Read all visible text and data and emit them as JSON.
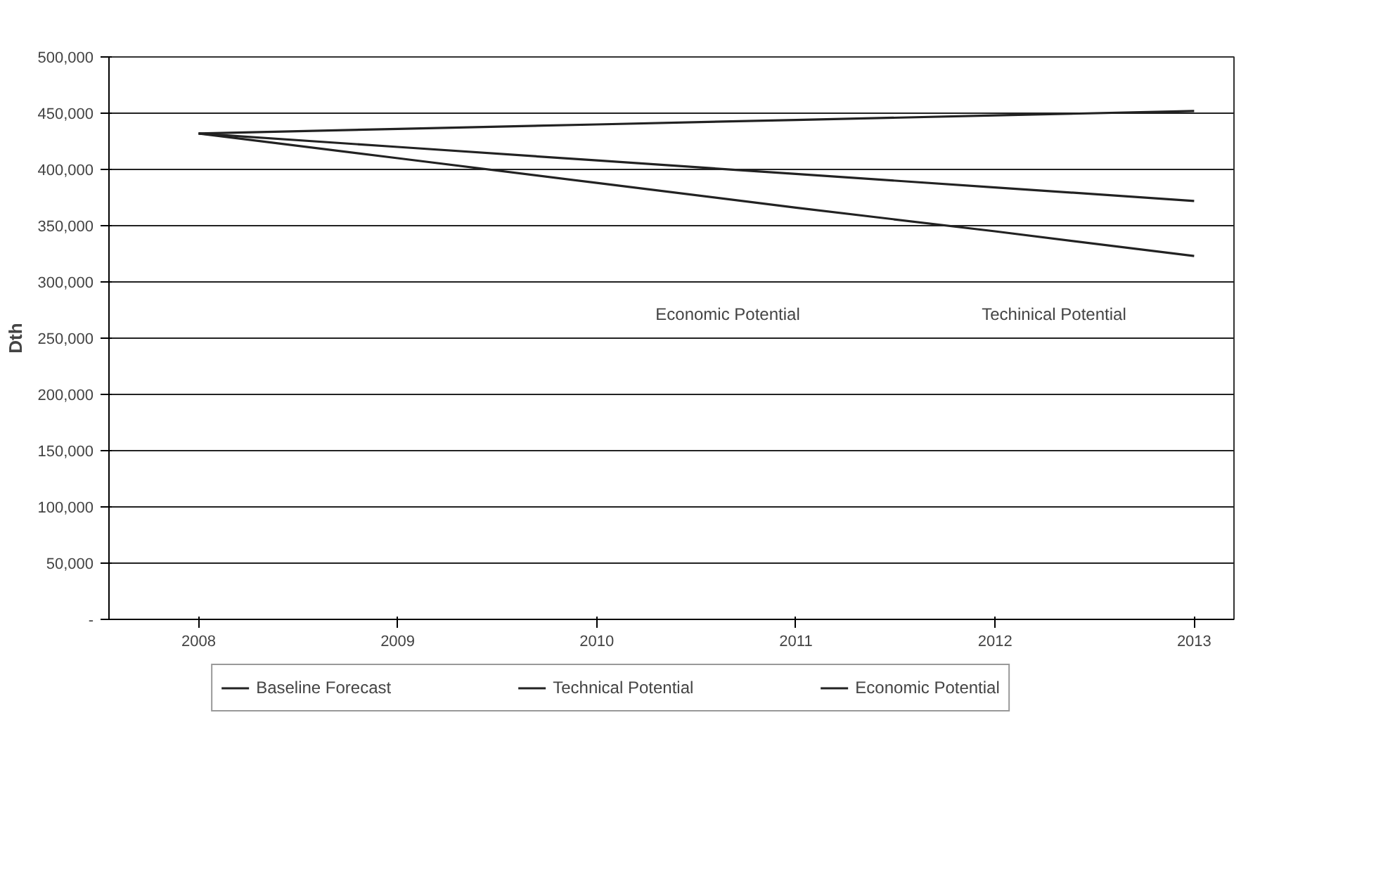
{
  "chart_data": {
    "type": "line",
    "ylabel": "Dth",
    "x": [
      2008,
      2009,
      2010,
      2011,
      2012,
      2013
    ],
    "xlim": [
      2007.55,
      2013.2
    ],
    "xticks": [
      2008,
      2009,
      2010,
      2011,
      2012,
      2013
    ],
    "ylim": [
      0,
      500000
    ],
    "yticks": [
      {
        "value": 0,
        "label": "-"
      },
      {
        "value": 50000,
        "label": "50,000"
      },
      {
        "value": 100000,
        "label": "100,000"
      },
      {
        "value": 150000,
        "label": "150,000"
      },
      {
        "value": 200000,
        "label": "200,000"
      },
      {
        "value": 250000,
        "label": "250,000"
      },
      {
        "value": 300000,
        "label": "300,000"
      },
      {
        "value": 350000,
        "label": "350,000"
      },
      {
        "value": 400000,
        "label": "400,000"
      },
      {
        "value": 450000,
        "label": "450,000"
      },
      {
        "value": 500000,
        "label": "500,000"
      }
    ],
    "series": [
      {
        "name": "Baseline Forecast",
        "color": "#222222",
        "values": [
          432000,
          436000,
          440000,
          444000,
          448000,
          452000
        ]
      },
      {
        "name": "Technical Potential",
        "color": "#222222",
        "values": [
          432000,
          410000,
          388000,
          366000,
          345000,
          323000
        ]
      },
      {
        "name": "Economic Potential",
        "color": "#222222",
        "values": [
          432000,
          420000,
          408000,
          396000,
          384000,
          372000
        ]
      }
    ],
    "annotations": [
      "Economic Potential",
      "Techinical Potential"
    ],
    "grid": "y",
    "legend": "bottom",
    "marker": "none",
    "line_style": "solid"
  }
}
